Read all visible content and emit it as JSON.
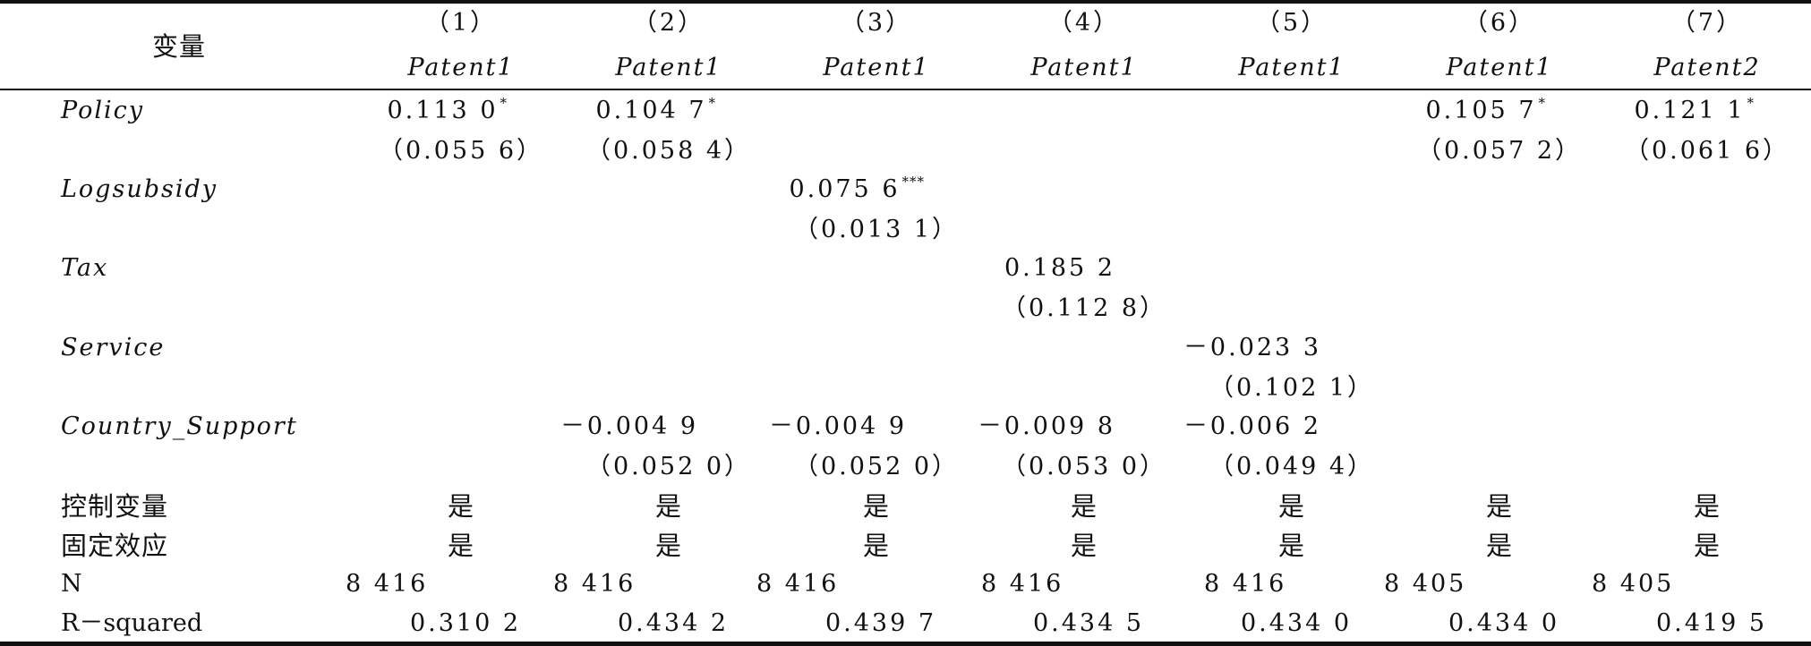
{
  "table": {
    "stub_header": "变量",
    "columns": [
      {
        "num": "（1）",
        "dep": "Patent1"
      },
      {
        "num": "（2）",
        "dep": "Patent1"
      },
      {
        "num": "（3）",
        "dep": "Patent1"
      },
      {
        "num": "（4）",
        "dep": "Patent1"
      },
      {
        "num": "（5）",
        "dep": "Patent1"
      },
      {
        "num": "（6）",
        "dep": "Patent1"
      },
      {
        "num": "（7）",
        "dep": "Patent2"
      }
    ],
    "variables": [
      {
        "name": "Policy",
        "coef": [
          "0.113 0",
          "0.104 7",
          "",
          "",
          "",
          "0.105 7",
          "0.121 1"
        ],
        "stars": [
          "*",
          "*",
          "",
          "",
          "",
          "*",
          "*"
        ],
        "se": [
          "（0.055 6）",
          "（0.058 4）",
          "",
          "",
          "",
          "（0.057 2）",
          "（0.061 6）"
        ]
      },
      {
        "name": "Logsubsidy",
        "coef": [
          "",
          "",
          "0.075 6",
          "",
          "",
          "",
          ""
        ],
        "stars": [
          "",
          "",
          "***",
          "",
          "",
          "",
          ""
        ],
        "se": [
          "",
          "",
          "（0.013 1）",
          "",
          "",
          "",
          ""
        ]
      },
      {
        "name": "Tax",
        "coef": [
          "",
          "",
          "",
          "0.185 2",
          "",
          "",
          ""
        ],
        "stars": [
          "",
          "",
          "",
          "",
          "",
          "",
          ""
        ],
        "se": [
          "",
          "",
          "",
          "（0.112 8）",
          "",
          "",
          ""
        ]
      },
      {
        "name": "Service",
        "coef": [
          "",
          "",
          "",
          "",
          "－0.023 3",
          "",
          ""
        ],
        "stars": [
          "",
          "",
          "",
          "",
          "",
          "",
          ""
        ],
        "se": [
          "",
          "",
          "",
          "",
          "（0.102 1）",
          "",
          ""
        ]
      },
      {
        "name": "Country_Support",
        "coef": [
          "",
          "－0.004 9",
          "－0.004 9",
          "－0.009 8",
          "－0.006 2",
          "",
          ""
        ],
        "stars": [
          "",
          "",
          "",
          "",
          "",
          "",
          ""
        ],
        "se": [
          "",
          "（0.052 0）",
          "（0.052 0）",
          "（0.053 0）",
          "（0.049 4）",
          "",
          ""
        ]
      }
    ],
    "controls": {
      "label": "控制变量",
      "values": [
        "是",
        "是",
        "是",
        "是",
        "是",
        "是",
        "是"
      ]
    },
    "fixed_effects": {
      "label": "固定效应",
      "values": [
        "是",
        "是",
        "是",
        "是",
        "是",
        "是",
        "是"
      ]
    },
    "n": {
      "label": "N",
      "values": [
        "8 416",
        "8 416",
        "8 416",
        "8 416",
        "8 416",
        "8 405",
        "8 405"
      ]
    },
    "r2": {
      "label": "R－squared",
      "values": [
        "0.310 2",
        "0.434 2",
        "0.439 7",
        "0.434 5",
        "0.434 0",
        "0.434 0",
        "0.419 5"
      ]
    }
  }
}
